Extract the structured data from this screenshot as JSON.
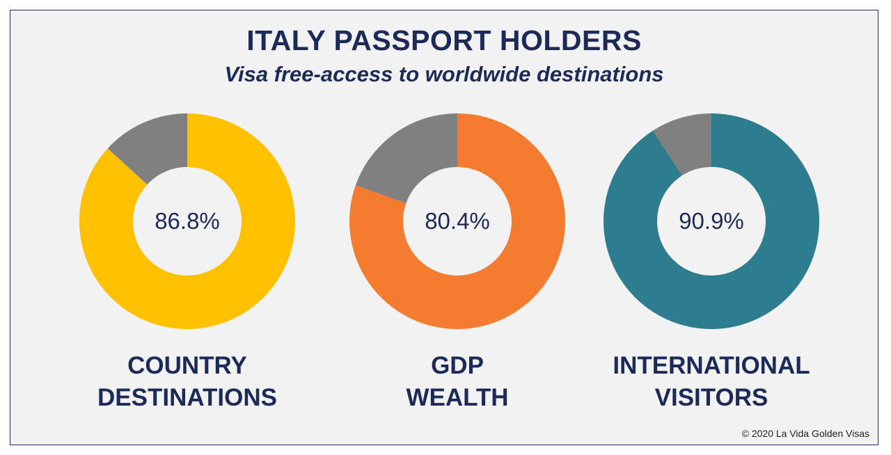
{
  "header": {
    "title": "ITALY PASSPORT HOLDERS",
    "subtitle": "Visa free-access to worldwide destinations"
  },
  "footer": {
    "copyright": "© 2020 La Vida Golden Visas"
  },
  "colors": {
    "remainder": "#808080",
    "frame_border": "#1f2d57",
    "background": "#f2f2f2",
    "text": "#1b2a56"
  },
  "chart_data": [
    {
      "type": "pie",
      "variant": "donut",
      "center_label": "86.8%",
      "caption_lines": [
        "COUNTRY",
        "DESTINATIONS"
      ],
      "values": [
        86.8,
        13.2
      ],
      "colors": [
        "#ffc000",
        "#808080"
      ]
    },
    {
      "type": "pie",
      "variant": "donut",
      "center_label": "80.4%",
      "caption_lines": [
        "GDP",
        "WEALTH"
      ],
      "values": [
        80.4,
        19.6
      ],
      "colors": [
        "#f47c30",
        "#808080"
      ]
    },
    {
      "type": "pie",
      "variant": "donut",
      "center_label": "90.9%",
      "caption_lines": [
        "INTERNATIONAL",
        "VISITORS"
      ],
      "values": [
        90.9,
        9.1
      ],
      "colors": [
        "#2e7d8f",
        "#808080"
      ]
    }
  ]
}
